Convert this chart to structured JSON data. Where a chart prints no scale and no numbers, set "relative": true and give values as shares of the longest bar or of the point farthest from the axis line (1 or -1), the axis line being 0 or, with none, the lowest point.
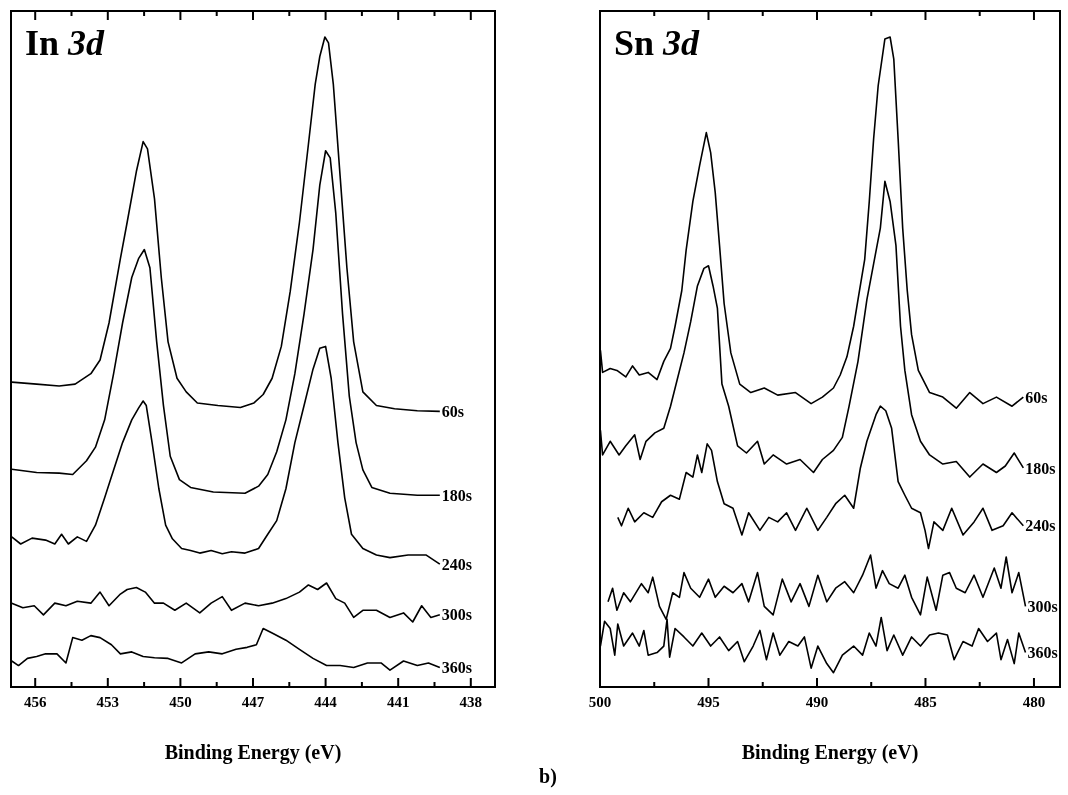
{
  "chart_data": [
    {
      "type": "line",
      "title": "In 3d",
      "xlabel": "Binding Energy (eV)",
      "relative": true,
      "xlim": [
        457,
        437
      ],
      "xticks": [
        456,
        {
          "value": 454.5,
          "label": null
        },
        453,
        {
          "value": 451.5,
          "label": null
        },
        450,
        {
          "value": 448.5,
          "label": null
        },
        447,
        {
          "value": 445.5,
          "label": null
        },
        444,
        {
          "value": 442.5,
          "label": null
        },
        441,
        {
          "value": 439.5,
          "label": null
        },
        438
      ],
      "series": [
        {
          "name": "60s",
          "color": "#000000",
          "x": [
            456.97,
            455.94,
            455.01,
            454.35,
            453.7,
            453.32,
            452.95,
            452.48,
            452.2,
            451.82,
            451.54,
            451.36,
            451.07,
            450.79,
            450.51,
            450.14,
            449.76,
            449.3,
            448.45,
            447.52,
            446.96,
            446.58,
            446.21,
            445.83,
            445.46,
            445.08,
            444.71,
            444.43,
            444.24,
            444.03,
            443.88,
            443.68,
            443.4,
            443.12,
            442.84,
            442.46,
            441.9,
            441.15,
            440.21,
            439.28
          ],
          "values": [
            0.469,
            0.466,
            0.463,
            0.466,
            0.482,
            0.503,
            0.56,
            0.659,
            0.715,
            0.793,
            0.839,
            0.828,
            0.751,
            0.63,
            0.531,
            0.475,
            0.454,
            0.437,
            0.433,
            0.43,
            0.437,
            0.45,
            0.475,
            0.524,
            0.609,
            0.715,
            0.835,
            0.927,
            0.97,
            1,
            0.991,
            0.927,
            0.786,
            0.645,
            0.531,
            0.454,
            0.433,
            0.428,
            0.425,
            0.424
          ]
        },
        {
          "name": "180s",
          "color": "#000000",
          "x": [
            456.97,
            455.94,
            455.01,
            454.45,
            453.88,
            453.51,
            453.13,
            452.76,
            452.39,
            452.01,
            451.73,
            451.49,
            451.26,
            450.98,
            450.7,
            450.42,
            450.04,
            449.58,
            448.64,
            447.33,
            446.77,
            446.39,
            446.02,
            445.64,
            445.27,
            444.89,
            444.52,
            444.24,
            444.0,
            443.81,
            443.58,
            443.3,
            443.02,
            442.74,
            442.46,
            442.09,
            441.34,
            440.21,
            439.28
          ],
          "values": [
            0.335,
            0.33,
            0.329,
            0.327,
            0.348,
            0.369,
            0.411,
            0.482,
            0.56,
            0.63,
            0.659,
            0.673,
            0.645,
            0.531,
            0.433,
            0.355,
            0.319,
            0.307,
            0.3,
            0.298,
            0.309,
            0.327,
            0.362,
            0.411,
            0.482,
            0.574,
            0.673,
            0.772,
            0.825,
            0.814,
            0.729,
            0.574,
            0.447,
            0.376,
            0.334,
            0.307,
            0.298,
            0.295,
            0.295
          ]
        },
        {
          "name": "240s",
          "color": "#000000",
          "x": [
            456.97,
            456.6,
            456.13,
            455.57,
            455.19,
            454.91,
            454.63,
            454.26,
            453.88,
            453.51,
            453.13,
            452.76,
            452.39,
            452.01,
            451.73,
            451.54,
            451.41,
            451.17,
            450.89,
            450.61,
            450.33,
            449.95,
            449.58,
            449.2,
            448.73,
            448.27,
            447.89,
            447.33,
            446.77,
            446.39,
            446.02,
            445.64,
            445.27,
            444.89,
            444.52,
            444.24,
            444.0,
            443.77,
            443.49,
            443.21,
            442.93,
            442.46,
            441.9,
            441.34,
            440.59,
            439.84,
            439.28
          ],
          "values": [
            0.231,
            0.22,
            0.229,
            0.226,
            0.22,
            0.235,
            0.22,
            0.231,
            0.224,
            0.249,
            0.291,
            0.334,
            0.376,
            0.411,
            0.429,
            0.44,
            0.433,
            0.376,
            0.305,
            0.249,
            0.228,
            0.213,
            0.21,
            0.206,
            0.21,
            0.205,
            0.208,
            0.206,
            0.213,
            0.235,
            0.256,
            0.305,
            0.376,
            0.433,
            0.489,
            0.521,
            0.524,
            0.475,
            0.376,
            0.291,
            0.235,
            0.213,
            0.203,
            0.199,
            0.203,
            0.203,
            0.189
          ]
        },
        {
          "name": "300s",
          "color": "#000000",
          "x": [
            456.97,
            456.51,
            456.04,
            455.66,
            455.19,
            454.73,
            454.26,
            453.7,
            453.32,
            452.95,
            452.48,
            452.2,
            451.82,
            451.45,
            451.07,
            450.7,
            450.23,
            449.76,
            449.2,
            448.73,
            448.27,
            447.89,
            447.33,
            446.77,
            446.21,
            445.64,
            445.08,
            444.71,
            444.33,
            443.96,
            443.58,
            443.21,
            442.84,
            442.46,
            441.9,
            441.34,
            440.78,
            440.4,
            440.03,
            439.65,
            439.28
          ],
          "values": [
            0.129,
            0.122,
            0.125,
            0.111,
            0.129,
            0.125,
            0.132,
            0.129,
            0.146,
            0.125,
            0.143,
            0.15,
            0.153,
            0.146,
            0.129,
            0.129,
            0.118,
            0.129,
            0.114,
            0.129,
            0.139,
            0.118,
            0.129,
            0.125,
            0.129,
            0.136,
            0.146,
            0.157,
            0.15,
            0.16,
            0.136,
            0.129,
            0.107,
            0.118,
            0.118,
            0.107,
            0.114,
            0.1,
            0.125,
            0.107,
            0.111
          ]
        },
        {
          "name": "360s",
          "color": "#000000",
          "x": [
            456.97,
            456.69,
            456.32,
            455.94,
            455.57,
            455.1,
            454.73,
            454.45,
            454.07,
            453.7,
            453.32,
            452.85,
            452.48,
            452.01,
            451.54,
            451.07,
            450.51,
            449.95,
            449.39,
            448.83,
            448.27,
            447.7,
            447.24,
            446.86,
            446.58,
            446.21,
            445.64,
            445.08,
            444.52,
            443.96,
            443.4,
            442.84,
            442.27,
            441.71,
            441.34,
            440.78,
            440.21,
            439.75,
            439.28
          ],
          "values": [
            0.04,
            0.033,
            0.044,
            0.047,
            0.051,
            0.051,
            0.037,
            0.076,
            0.072,
            0.079,
            0.076,
            0.065,
            0.051,
            0.054,
            0.047,
            0.045,
            0.044,
            0.037,
            0.051,
            0.054,
            0.051,
            0.058,
            0.061,
            0.065,
            0.09,
            0.083,
            0.072,
            0.058,
            0.044,
            0.033,
            0.033,
            0.03,
            0.037,
            0.037,
            0.026,
            0.04,
            0.033,
            0.037,
            0.03
          ]
        }
      ]
    },
    {
      "type": "line",
      "title": "Sn 3d",
      "xlabel": "Binding Energy (eV)",
      "relative": true,
      "xlim": [
        500,
        478.8
      ],
      "annotations": [
        "b)"
      ],
      "xticks": [
        500,
        {
          "value": 497.5,
          "label": null
        },
        495,
        {
          "value": 492.5,
          "label": null
        },
        490,
        {
          "value": 487.5,
          "label": null
        },
        485,
        {
          "value": 482.5,
          "label": null
        },
        480
      ],
      "series": [
        {
          "name": "60s",
          "color": "#000000",
          "x": [
            499.98,
            499.88,
            499.53,
            499.22,
            498.81,
            498.5,
            498.19,
            497.78,
            497.37,
            497.06,
            496.75,
            496.54,
            496.23,
            496.03,
            495.72,
            495.41,
            495.1,
            494.9,
            494.69,
            494.49,
            494.28,
            493.97,
            493.56,
            493.05,
            492.43,
            491.81,
            490.99,
            490.27,
            489.75,
            489.24,
            488.93,
            488.62,
            488.31,
            488.11,
            487.8,
            487.59,
            487.39,
            487.18,
            486.87,
            486.63,
            486.46,
            486.26,
            486.05,
            485.84,
            485.64,
            485.33,
            484.81,
            484.2,
            483.58,
            482.96,
            482.35,
            481.73,
            481.01,
            480.49
          ],
          "values": [
            0.518,
            0.484,
            0.49,
            0.487,
            0.477,
            0.494,
            0.48,
            0.484,
            0.473,
            0.501,
            0.521,
            0.555,
            0.61,
            0.672,
            0.747,
            0.802,
            0.853,
            0.822,
            0.761,
            0.679,
            0.59,
            0.514,
            0.466,
            0.453,
            0.46,
            0.449,
            0.453,
            0.436,
            0.446,
            0.46,
            0.48,
            0.508,
            0.555,
            0.596,
            0.658,
            0.747,
            0.843,
            0.925,
            0.997,
            1,
            0.966,
            0.843,
            0.706,
            0.61,
            0.542,
            0.487,
            0.453,
            0.446,
            0.429,
            0.453,
            0.436,
            0.446,
            0.432,
            0.446
          ]
        },
        {
          "name": "180s",
          "color": "#000000",
          "x": [
            499.98,
            499.88,
            499.53,
            499.12,
            498.81,
            498.4,
            498.15,
            497.88,
            497.47,
            497.06,
            496.75,
            496.44,
            496.13,
            495.82,
            495.51,
            495.21,
            495.0,
            494.79,
            494.59,
            494.38,
            494.07,
            493.66,
            493.25,
            492.74,
            492.43,
            492.02,
            491.4,
            490.78,
            490.16,
            489.75,
            489.24,
            488.83,
            488.52,
            488.11,
            487.7,
            487.39,
            487.08,
            486.87,
            486.63,
            486.36,
            486.15,
            485.95,
            485.64,
            485.23,
            484.81,
            484.2,
            483.58,
            482.96,
            482.35,
            481.73,
            481.32,
            480.91,
            480.49
          ],
          "values": [
            0.395,
            0.357,
            0.378,
            0.357,
            0.371,
            0.388,
            0.35,
            0.378,
            0.391,
            0.398,
            0.432,
            0.473,
            0.514,
            0.562,
            0.617,
            0.644,
            0.648,
            0.617,
            0.583,
            0.466,
            0.432,
            0.371,
            0.36,
            0.378,
            0.343,
            0.357,
            0.343,
            0.35,
            0.33,
            0.35,
            0.364,
            0.384,
            0.432,
            0.501,
            0.596,
            0.651,
            0.706,
            0.778,
            0.747,
            0.679,
            0.555,
            0.487,
            0.419,
            0.378,
            0.357,
            0.343,
            0.347,
            0.323,
            0.343,
            0.33,
            0.34,
            0.36,
            0.337
          ]
        },
        {
          "name": "240s",
          "color": "#000000",
          "x": [
            499.18,
            499.01,
            498.7,
            498.4,
            497.98,
            497.57,
            497.16,
            496.75,
            496.34,
            496.03,
            495.72,
            495.51,
            495.31,
            495.06,
            494.86,
            494.59,
            494.28,
            493.87,
            493.46,
            493.15,
            492.63,
            492.22,
            491.81,
            491.4,
            490.99,
            490.47,
            489.96,
            489.55,
            489.14,
            488.72,
            488.31,
            488.0,
            487.7,
            487.28,
            487.08,
            486.83,
            486.56,
            486.26,
            485.95,
            485.64,
            485.23,
            485.02,
            484.86,
            484.61,
            484.2,
            483.79,
            483.27,
            482.76,
            482.35,
            481.93,
            481.42,
            481.01,
            480.49
          ],
          "values": [
            0.261,
            0.248,
            0.275,
            0.254,
            0.268,
            0.261,
            0.285,
            0.295,
            0.289,
            0.33,
            0.323,
            0.357,
            0.33,
            0.374,
            0.364,
            0.316,
            0.282,
            0.275,
            0.234,
            0.268,
            0.241,
            0.261,
            0.254,
            0.268,
            0.241,
            0.275,
            0.241,
            0.261,
            0.282,
            0.295,
            0.275,
            0.337,
            0.378,
            0.419,
            0.432,
            0.425,
            0.398,
            0.316,
            0.295,
            0.275,
            0.268,
            0.241,
            0.213,
            0.254,
            0.241,
            0.275,
            0.234,
            0.254,
            0.275,
            0.241,
            0.248,
            0.268,
            0.248
          ]
        },
        {
          "name": "300s",
          "color": "#000000",
          "x": [
            499.63,
            499.42,
            499.22,
            498.91,
            498.6,
            498.09,
            497.78,
            497.57,
            497.26,
            496.95,
            496.65,
            496.34,
            496.13,
            495.82,
            495.41,
            495.0,
            494.69,
            494.28,
            493.87,
            493.46,
            493.15,
            492.74,
            492.43,
            492.02,
            491.6,
            491.19,
            490.78,
            490.37,
            489.96,
            489.55,
            489.14,
            488.72,
            488.31,
            487.9,
            487.53,
            487.28,
            486.98,
            486.67,
            486.26,
            485.95,
            485.64,
            485.23,
            484.92,
            484.51,
            484.2,
            483.89,
            483.58,
            483.17,
            482.76,
            482.35,
            481.83,
            481.52,
            481.28,
            481.01,
            480.7,
            480.39
          ],
          "values": [
            0.131,
            0.152,
            0.118,
            0.145,
            0.131,
            0.159,
            0.145,
            0.169,
            0.124,
            0.104,
            0.145,
            0.138,
            0.176,
            0.152,
            0.138,
            0.166,
            0.138,
            0.155,
            0.145,
            0.159,
            0.131,
            0.176,
            0.124,
            0.111,
            0.166,
            0.131,
            0.159,
            0.124,
            0.172,
            0.131,
            0.152,
            0.162,
            0.145,
            0.172,
            0.203,
            0.152,
            0.179,
            0.159,
            0.152,
            0.172,
            0.138,
            0.111,
            0.169,
            0.118,
            0.172,
            0.176,
            0.152,
            0.145,
            0.172,
            0.138,
            0.183,
            0.152,
            0.2,
            0.145,
            0.176,
            0.124
          ]
        },
        {
          "name": "360s",
          "color": "#000000",
          "x": [
            499.98,
            499.79,
            499.53,
            499.32,
            499.18,
            498.91,
            498.5,
            498.19,
            497.98,
            497.78,
            497.37,
            497.06,
            496.91,
            496.79,
            496.54,
            496.13,
            495.72,
            495.31,
            494.9,
            494.49,
            494.07,
            493.66,
            493.35,
            492.94,
            492.63,
            492.33,
            492.02,
            491.71,
            491.3,
            490.88,
            490.58,
            490.27,
            489.96,
            489.55,
            489.24,
            488.83,
            488.31,
            487.9,
            487.59,
            487.28,
            487.04,
            486.77,
            486.46,
            486.05,
            485.64,
            485.23,
            484.81,
            484.4,
            483.99,
            483.68,
            483.27,
            482.85,
            482.55,
            482.14,
            481.73,
            481.52,
            481.22,
            480.91,
            480.7,
            480.39
          ],
          "values": [
            0.063,
            0.101,
            0.09,
            0.049,
            0.097,
            0.063,
            0.083,
            0.063,
            0.087,
            0.049,
            0.053,
            0.063,
            0.104,
            0.046,
            0.09,
            0.077,
            0.063,
            0.083,
            0.063,
            0.077,
            0.056,
            0.07,
            0.039,
            0.063,
            0.087,
            0.042,
            0.083,
            0.049,
            0.07,
            0.063,
            0.077,
            0.029,
            0.063,
            0.036,
            0.022,
            0.049,
            0.063,
            0.049,
            0.083,
            0.063,
            0.107,
            0.056,
            0.08,
            0.049,
            0.077,
            0.063,
            0.08,
            0.083,
            0.08,
            0.042,
            0.07,
            0.063,
            0.09,
            0.07,
            0.083,
            0.042,
            0.073,
            0.036,
            0.083,
            0.053
          ]
        }
      ]
    }
  ]
}
